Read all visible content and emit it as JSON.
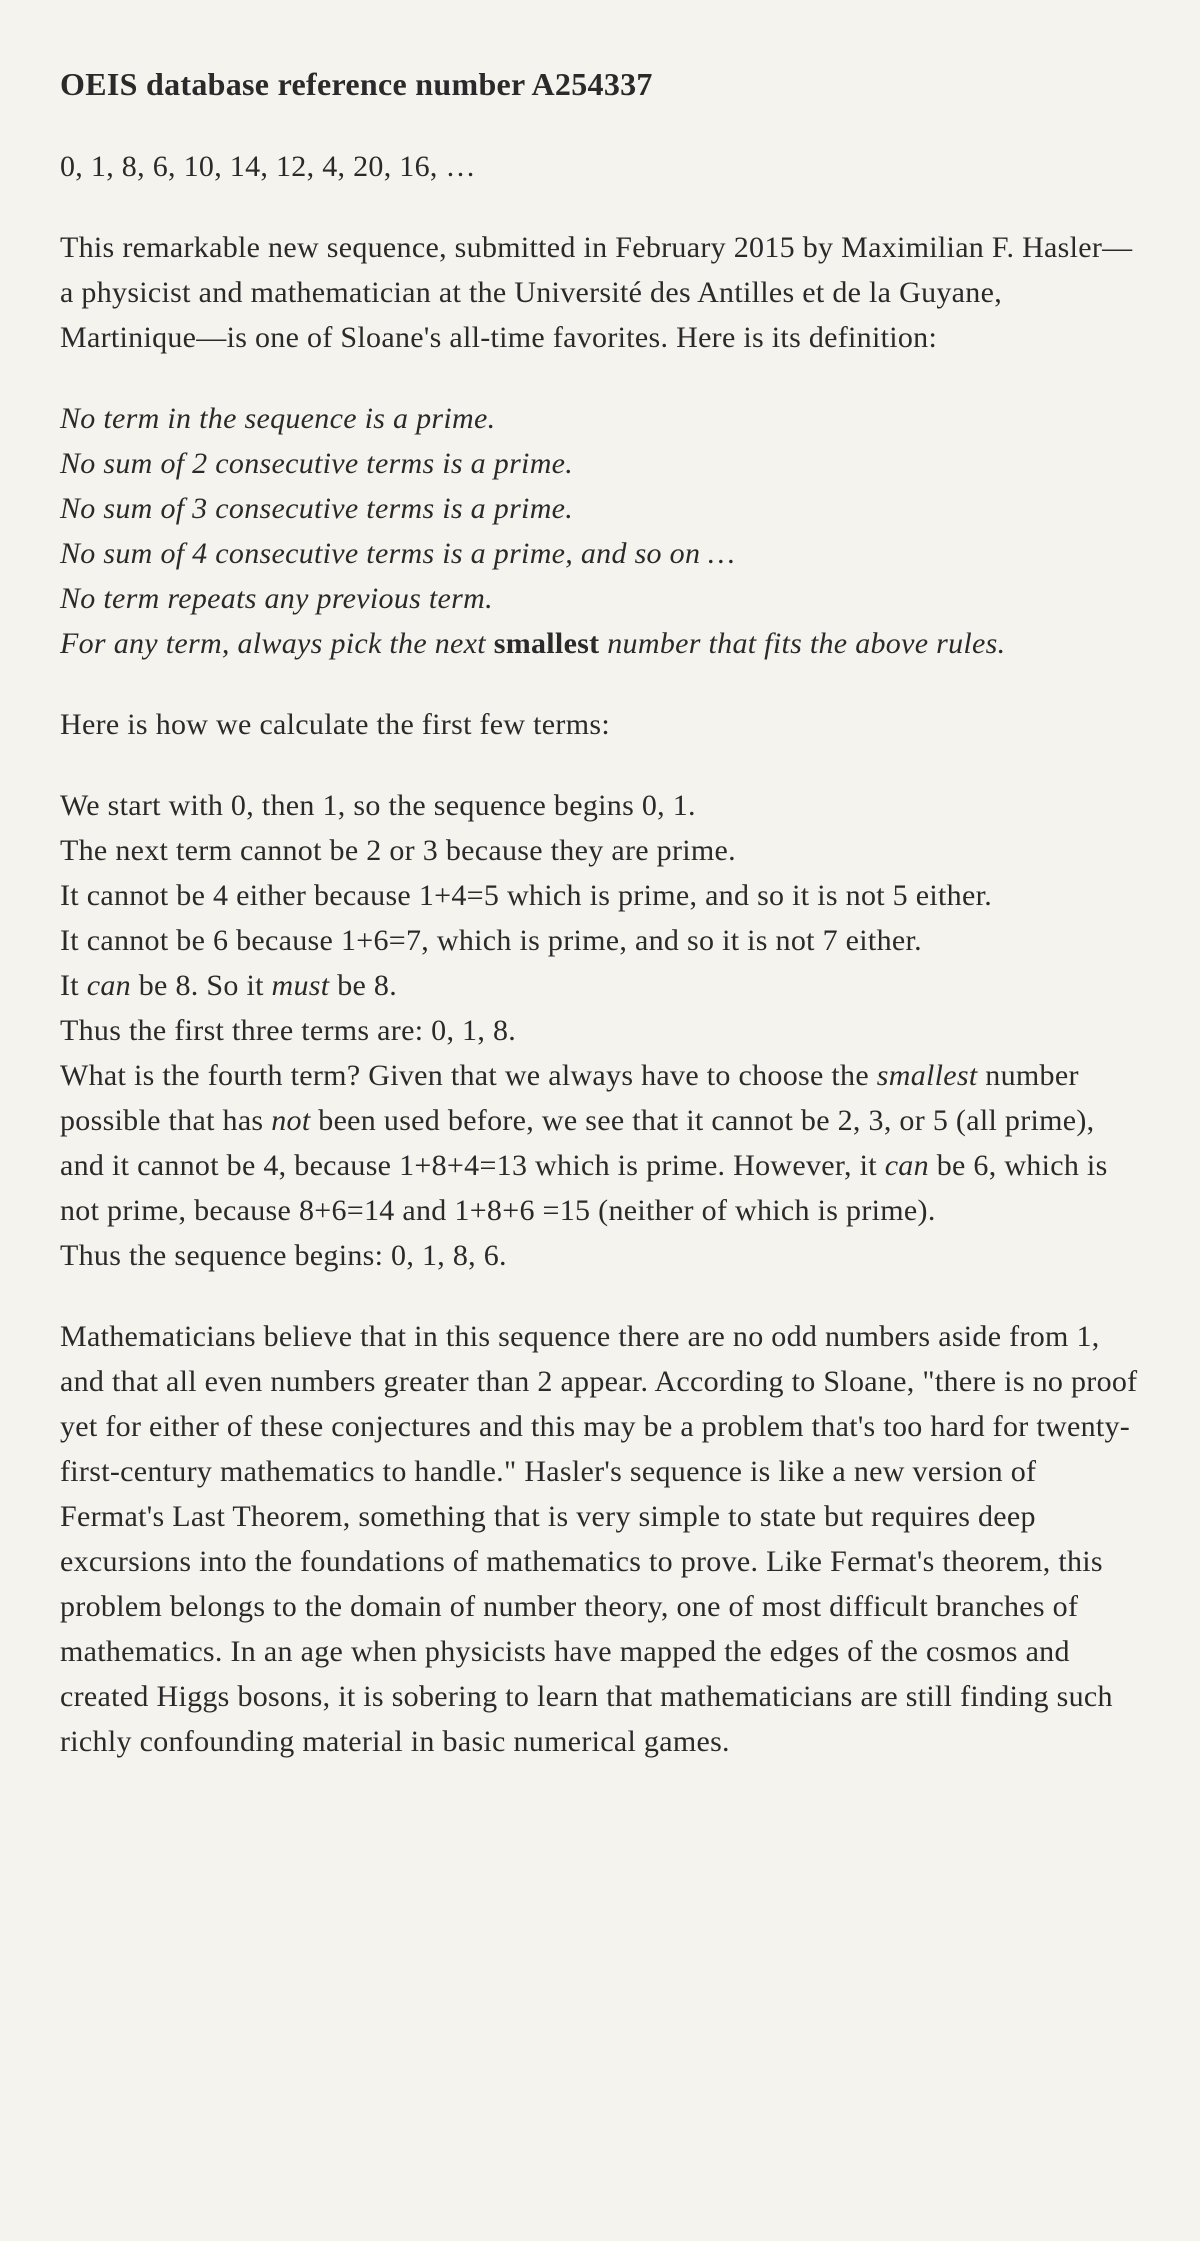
{
  "title": "OEIS database reference number A254337",
  "sequence": "0, 1, 8, 6, 10, 14, 12, 4, 20, 16, …",
  "intro": "This remarkable new sequence, submitted in February 2015 by Maximilian F. Hasler—a physicist and mathematician at the Université des Antilles et de la Guyane, Martinique—is one of Sloane's all-time favorites. Here is its definition:",
  "rules": {
    "line1": "No term in the sequence is a prime.",
    "line2": "No sum of 2 consecutive terms is a prime.",
    "line3": "No sum of 3 consecutive terms is a prime.",
    "line4": "No sum of 4 consecutive terms is a prime, and so on …",
    "line5": "No term repeats any previous term.",
    "line6_pre": "For any term, always pick the next ",
    "line6_bold": "smallest",
    "line6_post": " number that fits the above rules."
  },
  "calc_intro": "Here is how we calculate the first few terms:",
  "calc": {
    "l1": "We start with 0, then 1, so the sequence begins 0, 1.",
    "l2": "The next term cannot be 2 or 3 because they are prime.",
    "l3": "It cannot be 4 either because 1+4=5 which is prime, and so it is not 5 either.",
    "l4": "It cannot be 6 because 1+6=7, which is prime, and so it is not 7 either.",
    "l5_pre": "It ",
    "l5_em1": "can",
    "l5_mid": " be 8. So it ",
    "l5_em2": "must",
    "l5_post": " be 8.",
    "l6": "Thus the first three terms are: 0, 1, 8.",
    "l7_pre": "What is the fourth term? Given that we always have to choose the ",
    "l7_em1": "smallest",
    "l7_mid1": " number possible that has ",
    "l7_em2": "not",
    "l7_mid2": " been used before, we see that it cannot be 2, 3, or 5 (all prime), and it cannot be 4, because 1+8+4=13 which is prime. However, it ",
    "l7_em3": "can",
    "l7_post": " be 6, which is not prime, because 8+6=14 and 1+8+6 =15 (neither of which is prime).",
    "l8": "Thus the sequence begins: 0, 1, 8, 6."
  },
  "conclusion": "Mathematicians believe that in this sequence there are no odd numbers aside from 1, and that all even numbers greater than 2 appear. According to Sloane, \"there is no proof yet for either of these conjectures and this may be a problem that's too hard for twenty-first-century mathematics to handle.\" Hasler's sequence is like a new version of Fermat's Last Theorem, something that is very simple to state but requires deep excursions into the foundations of mathematics to prove. Like Fermat's theorem, this problem belongs to the domain of number theory, one of most difficult branches of mathematics. In an age when physicists have mapped the edges of the cosmos and created Higgs bosons, it is sobering to learn that mathematicians are still finding such richly confounding material in basic numerical games.",
  "colors": {
    "background": "#f5f3ee",
    "text": "#2a2a2a"
  },
  "typography": {
    "body_fontsize": 30,
    "title_fontsize": 32,
    "title_weight": "bold",
    "line_height": 1.5,
    "font_family": "Georgia, serif"
  }
}
